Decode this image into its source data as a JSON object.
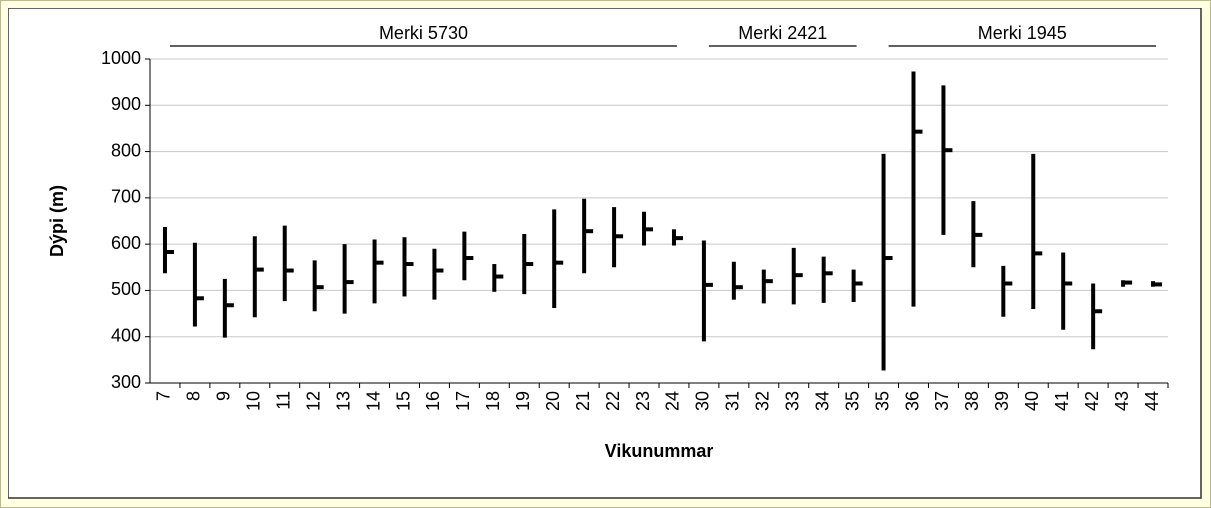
{
  "chart_data": {
    "type": "hilo",
    "xlabel": "Vikunummar",
    "ylabel": "Dýpi (m)",
    "ylim": [
      300,
      1000
    ],
    "yticks": [
      300,
      400,
      500,
      600,
      700,
      800,
      900,
      1000
    ],
    "grid": true,
    "color": "#000000",
    "groups": [
      {
        "label": "Merki 5730",
        "categories": [
          "7",
          "8",
          "9",
          "10",
          "11",
          "12",
          "13",
          "14",
          "15",
          "16",
          "17",
          "18",
          "19",
          "20",
          "21",
          "22",
          "23",
          "24"
        ],
        "high": [
          637,
          603,
          525,
          617,
          640,
          565,
          600,
          610,
          615,
          590,
          627,
          557,
          622,
          675,
          698,
          680,
          670,
          632
        ],
        "low": [
          537,
          422,
          398,
          442,
          477,
          455,
          450,
          472,
          487,
          480,
          522,
          497,
          492,
          462,
          537,
          550,
          597,
          597
        ],
        "mean": [
          583,
          483,
          468,
          545,
          543,
          507,
          518,
          560,
          557,
          543,
          570,
          530,
          557,
          560,
          628,
          617,
          632,
          613
        ]
      },
      {
        "label": "Merki 2421",
        "categories": [
          "30",
          "31",
          "32",
          "33",
          "34",
          "35"
        ],
        "high": [
          608,
          562,
          545,
          592,
          573,
          545
        ],
        "low": [
          390,
          480,
          472,
          470,
          473,
          475
        ],
        "mean": [
          512,
          507,
          520,
          533,
          537,
          515
        ]
      },
      {
        "label": "Merki 1945",
        "categories": [
          "35",
          "36",
          "37",
          "38",
          "39",
          "40",
          "41",
          "42",
          "43",
          "44"
        ],
        "high": [
          795,
          973,
          943,
          693,
          553,
          795,
          582,
          515,
          522,
          520
        ],
        "low": [
          327,
          465,
          620,
          550,
          443,
          460,
          415,
          373,
          508,
          508
        ],
        "mean": [
          570,
          843,
          803,
          620,
          515,
          580,
          515,
          455,
          517,
          513
        ]
      }
    ]
  }
}
